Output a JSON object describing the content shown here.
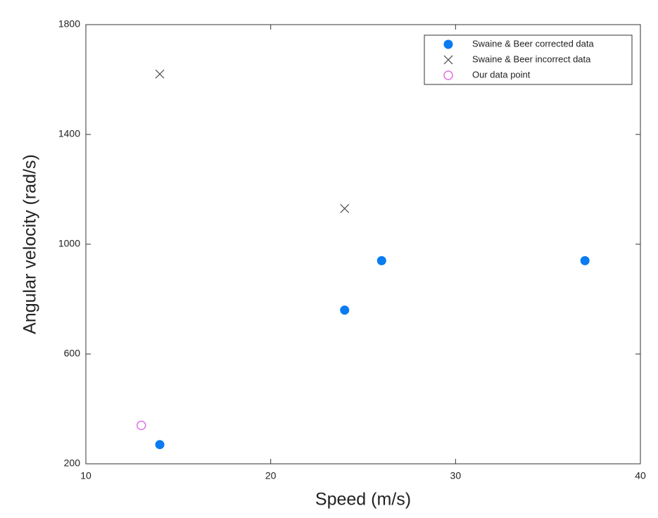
{
  "chart_data": {
    "type": "scatter",
    "x_label": "Speed (m/s)",
    "y_label": "Angular velocity (rad/s)",
    "xlim": [
      10,
      40
    ],
    "xticks": [
      10,
      20,
      30,
      40
    ],
    "ylim": [
      200,
      1800
    ],
    "yticks": [
      200,
      600,
      1000,
      1400,
      1800
    ],
    "grid": false,
    "legend": "upper right",
    "series": [
      {
        "name": "Swaine & Beer corrected data",
        "color": "#0a7bf0",
        "marker": "filled-circle",
        "x": [
          14,
          24,
          26,
          37
        ],
        "values": [
          270,
          760,
          940,
          940
        ]
      },
      {
        "name": "Swaine & Beer incorrect data",
        "color": "#555555",
        "marker": "x",
        "x": [
          14,
          24
        ],
        "values": [
          1620,
          1130
        ]
      },
      {
        "name": "Our data point",
        "color": "#e070e8",
        "marker": "open-circle",
        "x": [
          13
        ],
        "values": [
          340
        ]
      }
    ]
  }
}
